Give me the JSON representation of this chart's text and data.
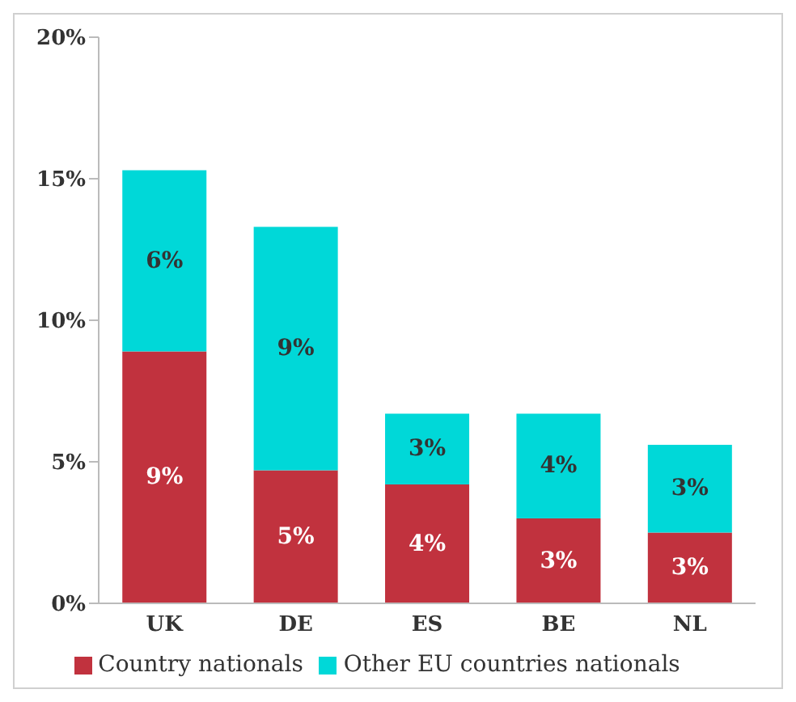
{
  "chart_data": {
    "type": "bar",
    "stacked": true,
    "categories": [
      "UK",
      "DE",
      "ES",
      "BE",
      "NL"
    ],
    "series": [
      {
        "name": "Country nationals",
        "color": "#c1323e",
        "values": [
          8.9,
          4.7,
          4.2,
          3.0,
          2.5
        ],
        "value_labels": [
          "9%",
          "5%",
          "4%",
          "3%",
          "3%"
        ]
      },
      {
        "name": "Other EU countries nationals",
        "color": "#00d8d8",
        "values": [
          6.4,
          8.6,
          2.5,
          3.7,
          3.1
        ],
        "value_labels": [
          "6%",
          "9%",
          "3%",
          "4%",
          "3%"
        ]
      }
    ],
    "ylim": [
      0,
      20
    ],
    "yticks": [
      {
        "value": 0,
        "label": "0%"
      },
      {
        "value": 5,
        "label": "5%"
      },
      {
        "value": 10,
        "label": "10%"
      },
      {
        "value": 15,
        "label": "15%"
      },
      {
        "value": 20,
        "label": "20%"
      }
    ],
    "grid": false,
    "legend": "bottom"
  }
}
